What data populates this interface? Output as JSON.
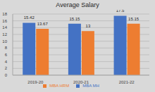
{
  "chart_data": {
    "type": "bar",
    "title": "Average Salary",
    "categories": [
      "2019-20",
      "2020-21",
      "2021-22"
    ],
    "series": [
      {
        "name": "MBA MH",
        "color": "#4472c4",
        "values": [
          15.42,
          15.15,
          17.5
        ]
      },
      {
        "name": "MBA HRM",
        "color": "#ed7d31",
        "values": [
          13.67,
          13,
          15.15
        ]
      }
    ],
    "ylim": [
      0,
      18
    ],
    "yticks": [
      0,
      2,
      4,
      6,
      8,
      10,
      12,
      14,
      16,
      18
    ],
    "grid": true,
    "data_labels": true,
    "legend": "bottom"
  }
}
